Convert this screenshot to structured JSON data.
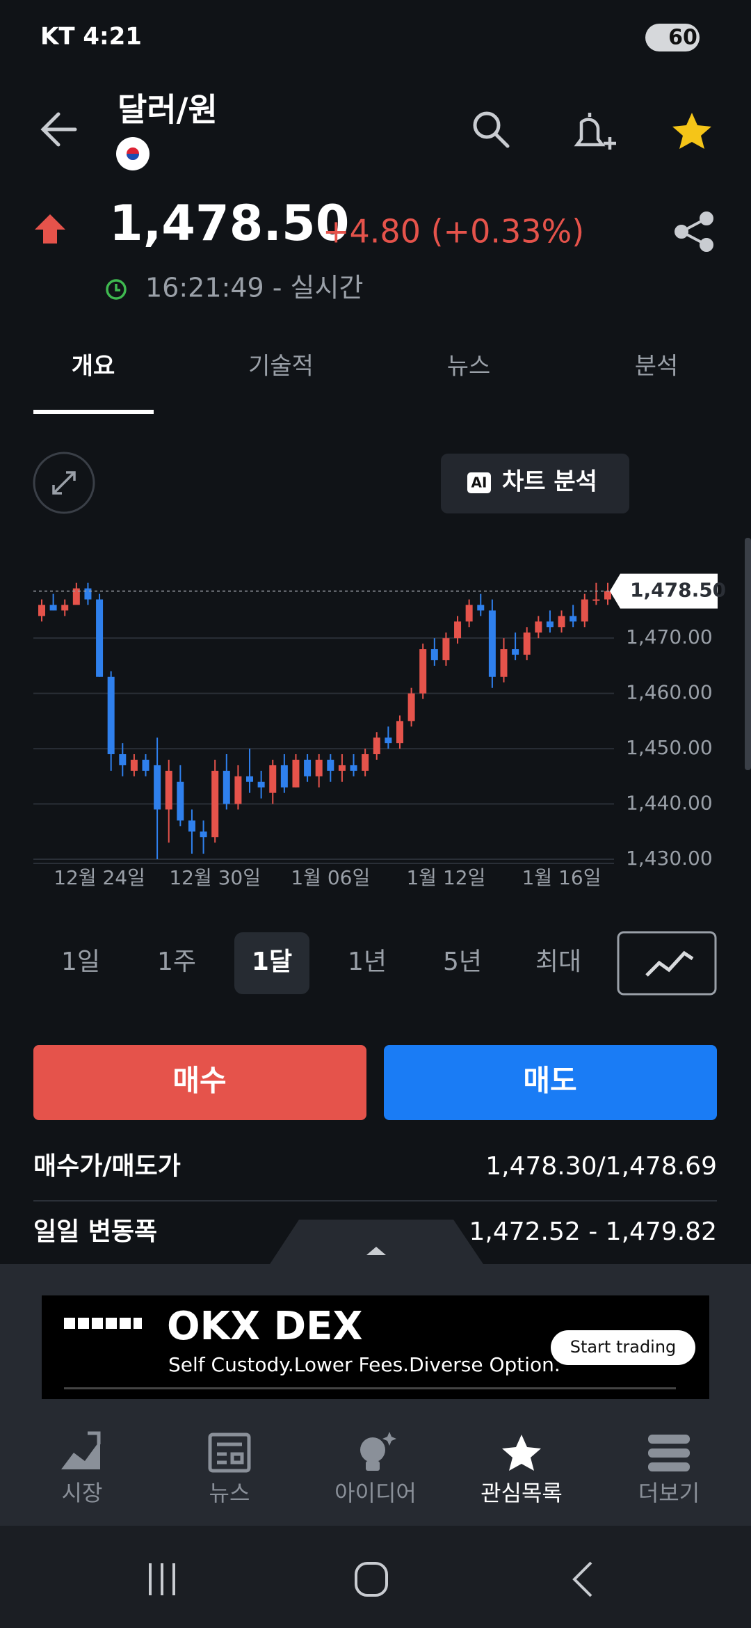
{
  "status_bar": {
    "carrier_time": "KT 4:21",
    "battery": "60"
  },
  "header": {
    "title": "달러/원"
  },
  "quote": {
    "price": "1,478.50",
    "change": "+4.80 (+0.33%)",
    "time": "16:21:49 - 실시간"
  },
  "tabs": [
    "개요",
    "기술적",
    "뉴스",
    "분석"
  ],
  "ai_button": {
    "badge": "AI",
    "label": "차트 분석"
  },
  "chart_data": {
    "type": "candlestick",
    "up_color": "#e5534b",
    "down_color": "#2f80ed",
    "grid": true,
    "ylim": [
      1430,
      1485
    ],
    "yticks": [
      {
        "value": 1430,
        "label": "1,430.00"
      },
      {
        "value": 1440,
        "label": "1,440.00"
      },
      {
        "value": 1450,
        "label": "1,450.00"
      },
      {
        "value": 1460,
        "label": "1,460.00"
      },
      {
        "value": 1470,
        "label": "1,470.00"
      }
    ],
    "last_value": 1478.5,
    "last_label": "1,478.50",
    "categories": [
      null,
      null,
      null,
      null,
      null,
      "12월 24일",
      null,
      null,
      null,
      null,
      null,
      null,
      null,
      null,
      null,
      "12월 30일",
      null,
      null,
      null,
      null,
      null,
      null,
      null,
      null,
      null,
      "1월 06일",
      null,
      null,
      null,
      null,
      null,
      null,
      null,
      null,
      null,
      "1월 12일",
      null,
      null,
      null,
      null,
      null,
      null,
      null,
      null,
      null,
      "1월 16일",
      null,
      null,
      null,
      null
    ],
    "open": [
      1474,
      1476,
      1475,
      1476,
      1479,
      1477,
      1463,
      1449,
      1446,
      1448,
      1447,
      1439,
      1444,
      1437,
      1435,
      1434,
      1446,
      1440,
      1445,
      1444,
      1442,
      1447,
      1443,
      1448,
      1445,
      1448,
      1446,
      1447,
      1446,
      1449,
      1452,
      1451,
      1455,
      1460,
      1468,
      1466,
      1470,
      1473,
      1476,
      1475,
      1463,
      1468,
      1467,
      1471,
      1473,
      1472,
      1474,
      1473,
      1477,
      1477
    ],
    "high": [
      1477,
      1478,
      1477,
      1480,
      1480,
      1478,
      1464,
      1451,
      1449,
      1449,
      1452,
      1448,
      1447,
      1439,
      1437,
      1448,
      1449,
      1447,
      1450,
      1446,
      1448,
      1449,
      1449,
      1449,
      1449,
      1449,
      1449,
      1449,
      1450,
      1453,
      1454,
      1456,
      1461,
      1469,
      1470,
      1471,
      1474,
      1477,
      1478,
      1477,
      1470,
      1471,
      1472,
      1474,
      1475,
      1475,
      1476,
      1478,
      1480,
      1480
    ],
    "low": [
      1473,
      1475,
      1474,
      1476,
      1476,
      1463,
      1446,
      1445,
      1445,
      1445,
      1430,
      1433,
      1436,
      1431,
      1431,
      1433,
      1439,
      1439,
      1442,
      1441,
      1440,
      1442,
      1443,
      1444,
      1443,
      1444,
      1444,
      1445,
      1445,
      1448,
      1450,
      1450,
      1454,
      1459,
      1465,
      1465,
      1469,
      1472,
      1474,
      1461,
      1462,
      1466,
      1466,
      1470,
      1471,
      1471,
      1472,
      1472,
      1476,
      1476
    ],
    "close": [
      1476,
      1475,
      1476,
      1479,
      1477,
      1463,
      1449,
      1447,
      1448,
      1446,
      1439,
      1446,
      1437,
      1435,
      1434,
      1446,
      1440,
      1445,
      1444,
      1443,
      1447,
      1443,
      1448,
      1445,
      1448,
      1446,
      1447,
      1446,
      1449,
      1452,
      1451,
      1455,
      1460,
      1468,
      1466,
      1470,
      1473,
      1476,
      1475,
      1463,
      1468,
      1467,
      1471,
      1473,
      1472,
      1474,
      1473,
      1477,
      1477,
      1478.5
    ]
  },
  "ranges": [
    "1일",
    "1주",
    "1달",
    "1년",
    "5년",
    "최대"
  ],
  "actions": {
    "buy": "매수",
    "sell": "매도"
  },
  "stats": {
    "rows": [
      [
        "매수가/매도가",
        "1,478.30/1,478.69"
      ],
      [
        "일일 변동폭",
        "1,472.52 - 1,479.82"
      ]
    ]
  },
  "ad": {
    "brand": "OKX DEX",
    "tagline": "Self Custody.Lower Fees.Diverse Option.",
    "cta": "Start trading"
  },
  "nav": [
    "시장",
    "뉴스",
    "아이디어",
    "관심목록",
    "더보기"
  ]
}
